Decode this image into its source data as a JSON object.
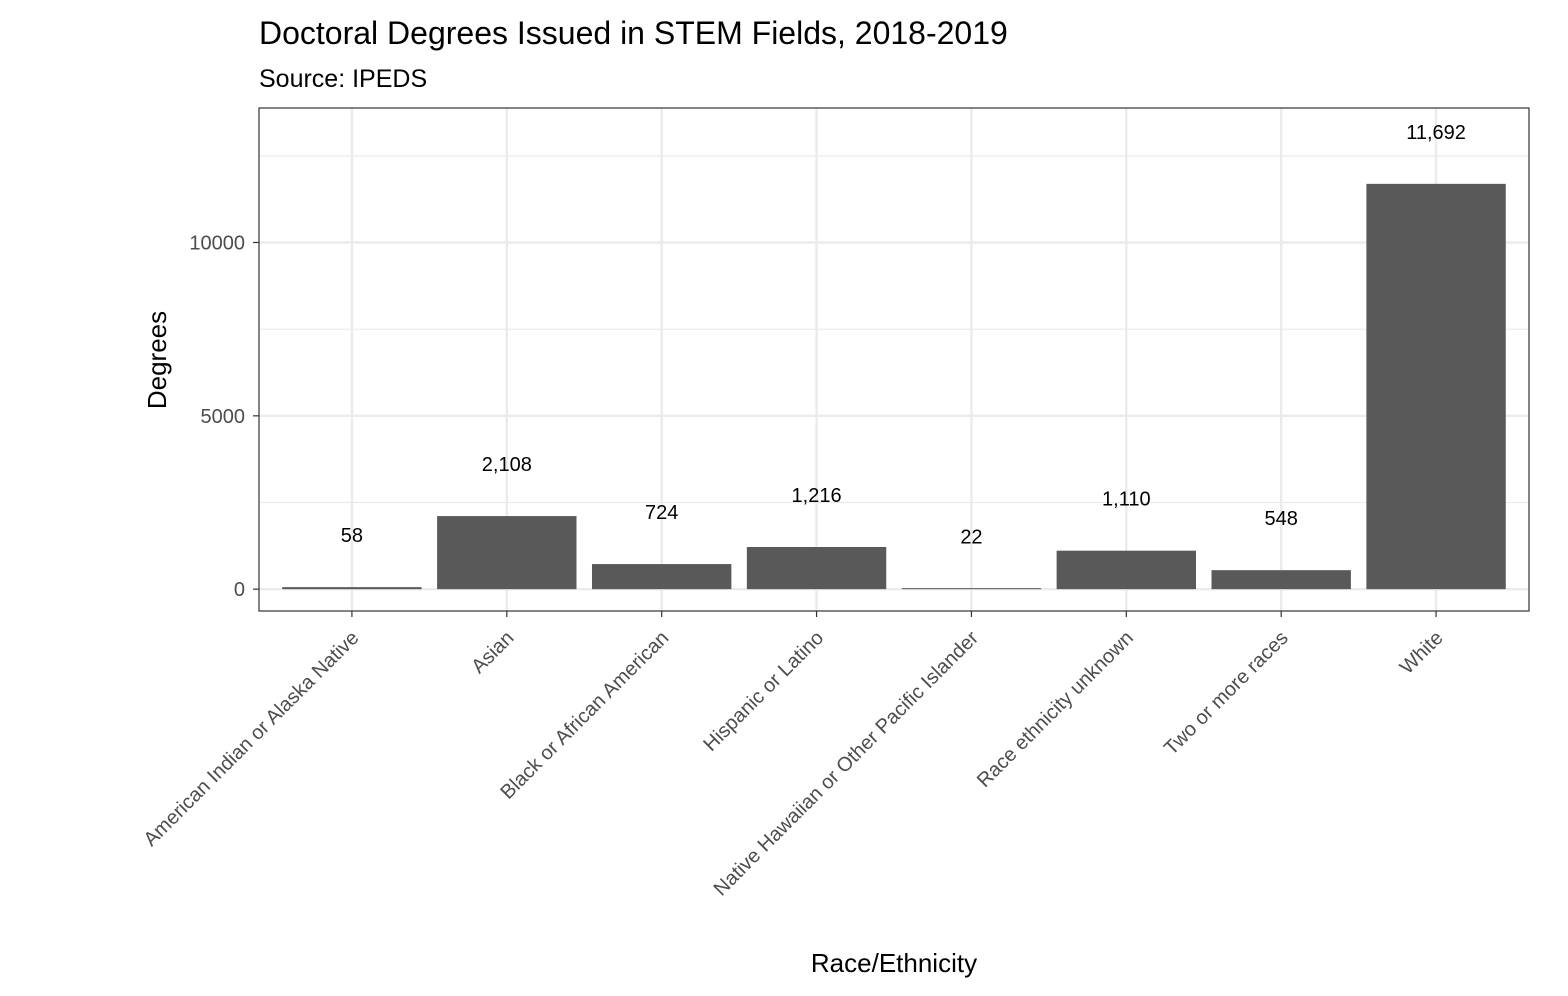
{
  "chart_data": {
    "type": "bar",
    "title": "Doctoral Degrees Issued in STEM Fields, 2018-2019",
    "subtitle": "Source: IPEDS",
    "xlabel": "Race/Ethnicity",
    "ylabel": "Degrees",
    "ylim": [
      -630,
      13880
    ],
    "yticks": [
      0,
      5000,
      10000
    ],
    "ytick_labels": [
      "0",
      "5000",
      "10000"
    ],
    "grid": true,
    "categories": [
      "American Indian or Alaska Native",
      "Asian",
      "Black or African American",
      "Hispanic or Latino",
      "Native Hawaiian or Other Pacific Islander",
      "Race ethnicity unknown",
      "Two or more races",
      "White"
    ],
    "values": [
      58,
      2108,
      724,
      1216,
      22,
      1110,
      548,
      11692
    ],
    "data_labels": [
      "58",
      "2,108",
      "724",
      "1,216",
      "22",
      "1,110",
      "548",
      "11,692"
    ],
    "bar_color": "#595959"
  }
}
